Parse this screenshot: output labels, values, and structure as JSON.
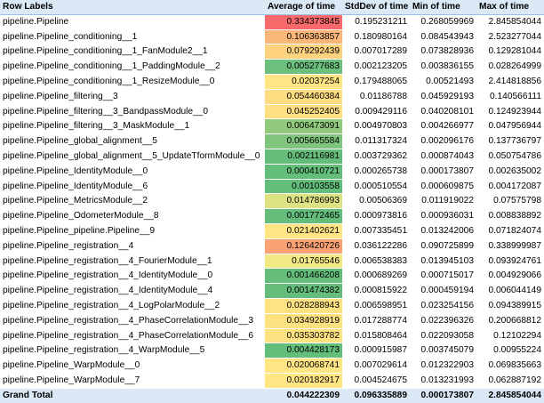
{
  "header": {
    "row_labels": "Row Labels",
    "avg": "Average of time",
    "stdev": "StdDev of time",
    "min": "Min of time",
    "max": "Max of time"
  },
  "rows": [
    {
      "label": "pipeline.Pipeline",
      "avg": "0.334373845",
      "stdev": "0.195231211",
      "min": "0.268059969",
      "max": "2.845854044",
      "color": "#f8696b"
    },
    {
      "label": "pipeline.Pipeline_conditioning__1",
      "avg": "0.106363857",
      "stdev": "0.180980164",
      "min": "0.084543943",
      "max": "2.523277044",
      "color": "#fbb77a"
    },
    {
      "label": "pipeline.Pipeline_conditioning__1_FanModule2__1",
      "avg": "0.079292439",
      "stdev": "0.007017289",
      "min": "0.073828936",
      "max": "0.129281044",
      "color": "#fdd27f"
    },
    {
      "label": "pipeline.Pipeline_conditioning__1_PaddingModule__2",
      "avg": "0.005277683",
      "stdev": "0.002123205",
      "min": "0.003836155",
      "max": "0.028264999",
      "color": "#6cbf7c"
    },
    {
      "label": "pipeline.Pipeline_conditioning__1_ResizeModule__0",
      "avg": "0.02037254",
      "stdev": "0.179488065",
      "min": "0.00521493",
      "max": "2.414818856",
      "color": "#ffe583"
    },
    {
      "label": "pipeline.Pipeline_filtering__3",
      "avg": "0.054460384",
      "stdev": "0.01186788",
      "min": "0.045929193",
      "max": "0.140566111",
      "color": "#fedc81"
    },
    {
      "label": "pipeline.Pipeline_filtering__3_BandpassModule__0",
      "avg": "0.045252405",
      "stdev": "0.009429116",
      "min": "0.040208101",
      "max": "0.124923944",
      "color": "#fedf82"
    },
    {
      "label": "pipeline.Pipeline_filtering__3_MaskModule__1",
      "avg": "0.006473091",
      "stdev": "0.004970803",
      "min": "0.004266977",
      "max": "0.047956944",
      "color": "#91ca7d"
    },
    {
      "label": "pipeline.Pipeline_global_alignment__5",
      "avg": "0.005665584",
      "stdev": "0.011317324",
      "min": "0.002096176",
      "max": "0.137736797",
      "color": "#80c57d"
    },
    {
      "label": "pipeline.Pipeline_global_alignment__5_UpdateTformModule__0",
      "avg": "0.002116981",
      "stdev": "0.003729362",
      "min": "0.000874043",
      "max": "0.050754786",
      "color": "#66bd7b"
    },
    {
      "label": "pipeline.Pipeline_IdentityModule__0",
      "avg": "0.000410721",
      "stdev": "0.000265738",
      "min": "0.000173807",
      "max": "0.002635002",
      "color": "#63be7b"
    },
    {
      "label": "pipeline.Pipeline_IdentityModule__6",
      "avg": "0.00103558",
      "stdev": "0.000510554",
      "min": "0.000609875",
      "max": "0.004172087",
      "color": "#63be7b"
    },
    {
      "label": "pipeline.Pipeline_MetricsModule__2",
      "avg": "0.014786993",
      "stdev": "0.00506369",
      "min": "0.011919022",
      "max": "0.07575798",
      "color": "#dde383"
    },
    {
      "label": "pipeline.Pipeline_OdometerModule__8",
      "avg": "0.001772465",
      "stdev": "0.000973816",
      "min": "0.000936031",
      "max": "0.008838892",
      "color": "#64bd7b"
    },
    {
      "label": "pipeline.Pipeline_pipeline.Pipeline__9",
      "avg": "0.021402621",
      "stdev": "0.007335451",
      "min": "0.013242006",
      "max": "0.071824074",
      "color": "#ffe583"
    },
    {
      "label": "pipeline.Pipeline_registration__4",
      "avg": "0.126420726",
      "stdev": "0.036122286",
      "min": "0.090725899",
      "max": "0.338999987",
      "color": "#faa276"
    },
    {
      "label": "pipeline.Pipeline_registration__4_FourierModule__1",
      "avg": "0.01765546",
      "stdev": "0.006538383",
      "min": "0.013945103",
      "max": "0.093924761",
      "color": "#f2e884"
    },
    {
      "label": "pipeline.Pipeline_registration__4_IdentityModule__0",
      "avg": "0.001466208",
      "stdev": "0.000689269",
      "min": "0.000715017",
      "max": "0.004929066",
      "color": "#64bd7b"
    },
    {
      "label": "pipeline.Pipeline_registration__4_IdentityModule__4",
      "avg": "0.001474382",
      "stdev": "0.000815922",
      "min": "0.000459194",
      "max": "0.006044149",
      "color": "#64bd7b"
    },
    {
      "label": "pipeline.Pipeline_registration__4_LogPolarModule__2",
      "avg": "0.028288943",
      "stdev": "0.006598951",
      "min": "0.023254156",
      "max": "0.094389915",
      "color": "#ffe383"
    },
    {
      "label": "pipeline.Pipeline_registration__4_PhaseCorrelationModule__3",
      "avg": "0.034928919",
      "stdev": "0.017288774",
      "min": "0.022396326",
      "max": "0.200668812",
      "color": "#fee282"
    },
    {
      "label": "pipeline.Pipeline_registration__4_PhaseCorrelationModule__6",
      "avg": "0.035303782",
      "stdev": "0.015808464",
      "min": "0.022093058",
      "max": "0.12102294",
      "color": "#fee282"
    },
    {
      "label": "pipeline.Pipeline_registration__4_WarpModule__5",
      "avg": "0.004428173",
      "stdev": "0.000915987",
      "min": "0.003745079",
      "max": "0.00955224",
      "color": "#63be7b"
    },
    {
      "label": "pipeline.Pipeline_WarpModule__0",
      "avg": "0.020068741",
      "stdev": "0.007029614",
      "min": "0.012322903",
      "max": "0.069835663",
      "color": "#ffe583"
    },
    {
      "label": "pipeline.Pipeline_WarpModule__7",
      "avg": "0.020182917",
      "stdev": "0.004524675",
      "min": "0.013231993",
      "max": "0.062887192",
      "color": "#ffe583"
    }
  ],
  "footer": {
    "label": "Grand Total",
    "avg": "0.044222309",
    "stdev": "0.096335889",
    "min": "0.000173807",
    "max": "2.845854044"
  }
}
